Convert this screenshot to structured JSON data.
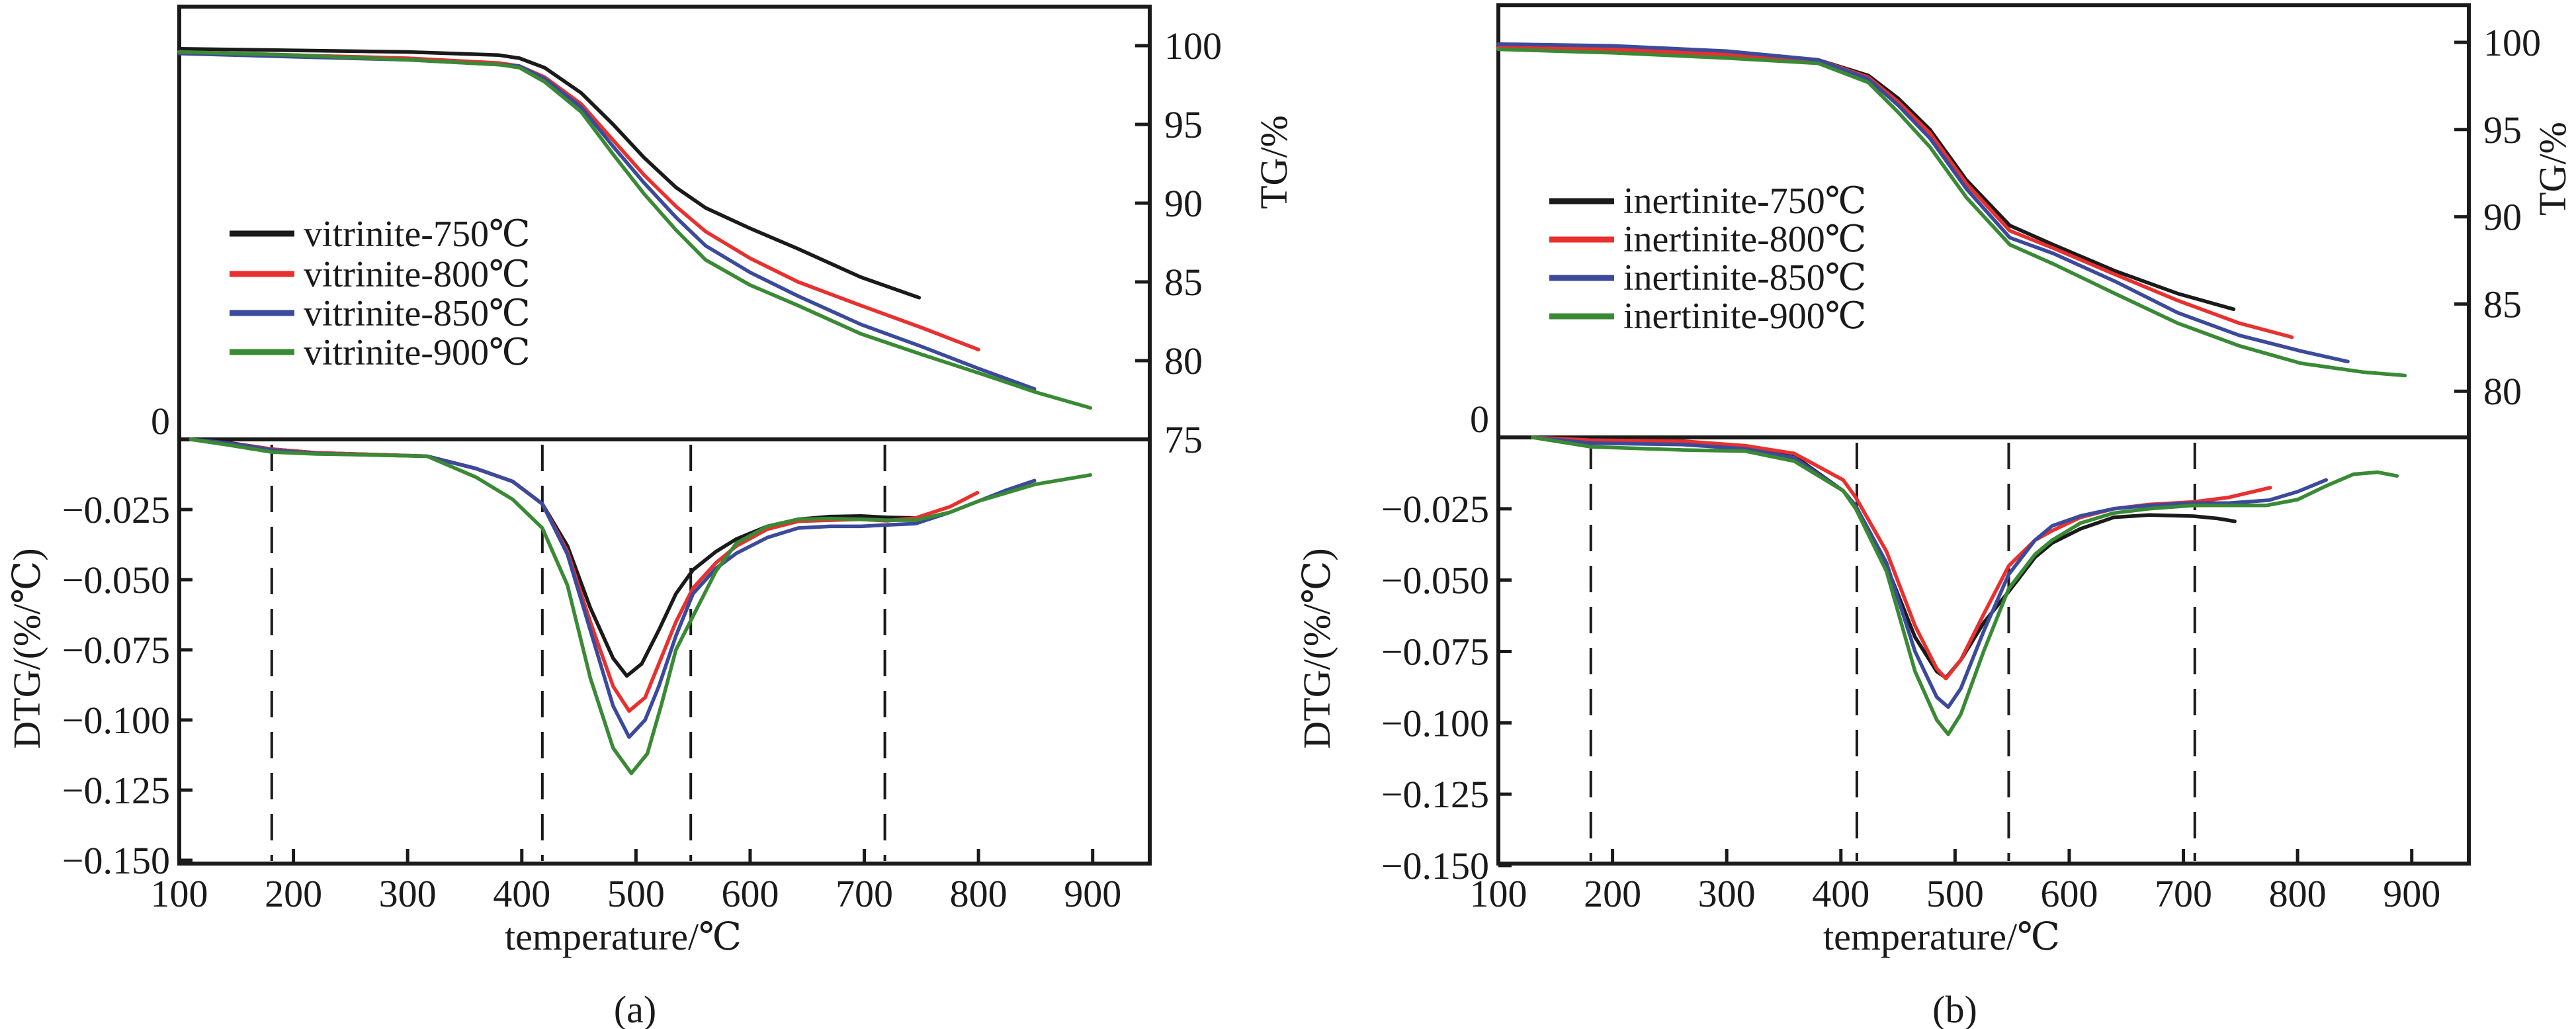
{
  "colors": {
    "750": "#1a1a1a",
    "800": "#e8312f",
    "850": "#3b4a9b",
    "900": "#3a8a35"
  },
  "chart_data": [
    {
      "id": "a",
      "type": "line",
      "panel_label": "(a)",
      "xlabel": "temperature/℃",
      "xlim": [
        100,
        950
      ],
      "xticks": [
        100,
        200,
        300,
        400,
        500,
        600,
        700,
        800,
        900
      ],
      "xtick_labels": [
        "100",
        "200",
        "300",
        "400",
        "500",
        "600",
        "700",
        "800",
        "900"
      ],
      "vertical_dashed_lines_x": [
        181,
        418,
        548,
        718
      ],
      "tg": {
        "ylabel": "TG/%",
        "axis_side": "right",
        "ylim": [
          75,
          102.7
        ],
        "yticks": [
          100,
          95,
          90,
          85,
          80,
          75
        ],
        "ytick_labels": [
          "100",
          "95",
          "90",
          "85",
          "80",
          "75"
        ],
        "legend_position": "center-left",
        "series": [
          {
            "name": "vitrinite-750℃",
            "key": "750",
            "x": [
              100,
              200,
              300,
              380,
              398,
              420,
              452,
              480,
              507,
              535,
              561,
              600,
              642,
              697,
              748
            ],
            "y": [
              99.8,
              99.7,
              99.6,
              99.4,
              99.2,
              98.6,
              97.0,
              95.0,
              92.9,
              91.0,
              89.7,
              88.4,
              87.1,
              85.3,
              84.0
            ]
          },
          {
            "name": "vitrinite-800℃",
            "key": "800",
            "x": [
              100,
              200,
              300,
              380,
              398,
              420,
              452,
              480,
              507,
              535,
              561,
              600,
              642,
              697,
              750,
              800
            ],
            "y": [
              99.6,
              99.4,
              99.2,
              98.9,
              98.7,
              98.0,
              96.3,
              94.0,
              91.8,
              89.8,
              88.2,
              86.5,
              85.0,
              83.5,
              82.1,
              80.7
            ]
          },
          {
            "name": "vitrinite-850℃",
            "key": "850",
            "x": [
              100,
              200,
              300,
              380,
              398,
              420,
              452,
              480,
              507,
              535,
              561,
              600,
              642,
              697,
              750,
              800,
              849
            ],
            "y": [
              99.5,
              99.3,
              99.1,
              98.8,
              98.7,
              97.9,
              96.1,
              93.6,
              91.3,
              89.1,
              87.3,
              85.6,
              84.1,
              82.3,
              80.9,
              79.5,
              78.2
            ]
          },
          {
            "name": "vitrinite-900℃",
            "key": "900",
            "x": [
              100,
              200,
              300,
              380,
              398,
              420,
              452,
              480,
              507,
              535,
              561,
              600,
              642,
              697,
              750,
              805,
              850,
              898
            ],
            "y": [
              99.6,
              99.4,
              99.1,
              98.8,
              98.6,
              97.7,
              95.8,
              93.1,
              90.6,
              88.3,
              86.4,
              84.8,
              83.5,
              81.7,
              80.4,
              79.1,
              78.0,
              77.0
            ]
          }
        ]
      },
      "dtg": {
        "ylabel": "DTG/(%/℃)",
        "axis_side": "left",
        "ylim": [
          -0.151,
          0
        ],
        "yticks": [
          0,
          -0.025,
          -0.05,
          -0.075,
          -0.1,
          -0.125,
          -0.15
        ],
        "ytick_labels": [
          "0",
          "−0.025",
          "−0.050",
          "−0.075",
          "−0.100",
          "−0.125",
          "−0.150"
        ],
        "series": [
          {
            "name": "vitrinite-750℃",
            "key": "750",
            "x": [
              110,
              140,
              181,
              220,
              262,
              317,
              360,
              392,
              418,
              440,
              460,
              480,
              492,
              505,
              520,
              535,
              550,
              570,
              588,
              615,
              642,
              670,
              697,
              720,
              745
            ],
            "y": [
              0,
              -0.001,
              -0.0035,
              -0.0048,
              -0.0053,
              -0.006,
              -0.0104,
              -0.015,
              -0.023,
              -0.038,
              -0.06,
              -0.078,
              -0.0843,
              -0.08,
              -0.068,
              -0.055,
              -0.0465,
              -0.04,
              -0.0355,
              -0.031,
              -0.0285,
              -0.0275,
              -0.0273,
              -0.0278,
              -0.028
            ]
          },
          {
            "name": "vitrinite-800℃",
            "key": "800",
            "x": [
              110,
              140,
              181,
              220,
              262,
              317,
              360,
              392,
              418,
              440,
              460,
              480,
              494,
              508,
              520,
              535,
              550,
              570,
              588,
              615,
              642,
              670,
              697,
              720,
              745,
              775,
              799
            ],
            "y": [
              0,
              -0.0012,
              -0.0035,
              -0.0048,
              -0.0053,
              -0.006,
              -0.0104,
              -0.015,
              -0.023,
              -0.04,
              -0.065,
              -0.088,
              -0.0968,
              -0.092,
              -0.08,
              -0.065,
              -0.053,
              -0.044,
              -0.038,
              -0.032,
              -0.0292,
              -0.0288,
              -0.0285,
              -0.029,
              -0.028,
              -0.024,
              -0.019
            ]
          },
          {
            "name": "vitrinite-850℃",
            "key": "850",
            "x": [
              110,
              140,
              181,
              220,
              262,
              317,
              360,
              392,
              418,
              440,
              460,
              480,
              494,
              508,
              520,
              535,
              550,
              570,
              588,
              615,
              642,
              670,
              697,
              720,
              745,
              775,
              800,
              825,
              849
            ],
            "y": [
              0,
              -0.0012,
              -0.0038,
              -0.005,
              -0.0055,
              -0.006,
              -0.0104,
              -0.015,
              -0.023,
              -0.041,
              -0.068,
              -0.095,
              -0.1061,
              -0.1,
              -0.088,
              -0.07,
              -0.055,
              -0.046,
              -0.0406,
              -0.035,
              -0.0316,
              -0.031,
              -0.031,
              -0.0305,
              -0.03,
              -0.026,
              -0.022,
              -0.018,
              -0.0147
            ]
          },
          {
            "name": "vitrinite-900℃",
            "key": "900",
            "x": [
              110,
              140,
              181,
              220,
              262,
              317,
              360,
              392,
              418,
              440,
              460,
              480,
              496,
              510,
              522,
              535,
              550,
              570,
              588,
              615,
              642,
              670,
              697,
              720,
              745,
              775,
              800,
              850,
              898
            ],
            "y": [
              0,
              -0.0018,
              -0.0045,
              -0.0052,
              -0.0055,
              -0.006,
              -0.0135,
              -0.0214,
              -0.0316,
              -0.052,
              -0.085,
              -0.11,
              -0.119,
              -0.112,
              -0.095,
              -0.075,
              -0.063,
              -0.047,
              -0.037,
              -0.031,
              -0.0285,
              -0.0282,
              -0.0285,
              -0.0288,
              -0.0288,
              -0.026,
              -0.022,
              -0.016,
              -0.0127
            ]
          }
        ]
      }
    },
    {
      "id": "b",
      "type": "line",
      "panel_label": "(b)",
      "xlabel": "temperature/℃",
      "xlim": [
        100,
        950
      ],
      "xticks": [
        100,
        200,
        300,
        400,
        500,
        600,
        700,
        800,
        900
      ],
      "xtick_labels": [
        "100",
        "200",
        "300",
        "400",
        "500",
        "600",
        "700",
        "800",
        "900"
      ],
      "vertical_dashed_lines_x": [
        181,
        414,
        547,
        710
      ],
      "tg": {
        "ylabel": "TG/%",
        "axis_side": "right",
        "ylim": [
          77.5,
          102.4
        ],
        "yticks": [
          100,
          95,
          90,
          85,
          80
        ],
        "ytick_labels": [
          "100",
          "95",
          "90",
          "85",
          "80"
        ],
        "legend_position": "center-left",
        "series": [
          {
            "name": "inertinite-750℃",
            "key": "750",
            "x": [
              100,
              200,
              300,
              380,
              424,
              450,
              478,
              510,
              548,
              586,
              640,
              695,
              744
            ],
            "y": [
              99.8,
              99.6,
              99.3,
              99.0,
              98.1,
              96.8,
              95.0,
              92.1,
              89.5,
              88.4,
              86.9,
              85.6,
              84.7
            ]
          },
          {
            "name": "inertinite-800℃",
            "key": "800",
            "x": [
              100,
              200,
              300,
              380,
              424,
              450,
              478,
              510,
              548,
              586,
              640,
              695,
              749,
              795
            ],
            "y": [
              99.7,
              99.6,
              99.3,
              99.0,
              98.0,
              96.6,
              94.8,
              91.9,
              89.2,
              88.2,
              86.7,
              85.2,
              83.9,
              83.1
            ]
          },
          {
            "name": "inertinite-850℃",
            "key": "850",
            "x": [
              100,
              200,
              300,
              380,
              424,
              450,
              478,
              510,
              548,
              586,
              640,
              695,
              749,
              803,
              844
            ],
            "y": [
              99.9,
              99.8,
              99.5,
              99.0,
              97.9,
              96.4,
              94.5,
              91.6,
              88.8,
              87.9,
              86.3,
              84.5,
              83.2,
              82.3,
              81.7
            ]
          },
          {
            "name": "inertinite-900℃",
            "key": "900",
            "x": [
              100,
              200,
              300,
              380,
              424,
              450,
              478,
              510,
              548,
              586,
              640,
              695,
              749,
              803,
              857,
              894
            ],
            "y": [
              99.6,
              99.4,
              99.1,
              98.8,
              97.7,
              96.0,
              94.0,
              91.1,
              88.4,
              87.3,
              85.6,
              83.9,
              82.6,
              81.6,
              81.1,
              80.9
            ]
          }
        ]
      },
      "dtg": {
        "ylabel": "DTG/(%/℃)",
        "axis_side": "left",
        "ylim": [
          -0.151,
          0
        ],
        "yticks": [
          0,
          -0.025,
          -0.05,
          -0.075,
          -0.1,
          -0.125,
          -0.15
        ],
        "ytick_labels": [
          "0",
          "−0.025",
          "−0.050",
          "−0.075",
          "−0.100",
          "−0.125",
          "−0.150"
        ],
        "series": [
          {
            "name": "inertinite-750℃",
            "key": "750",
            "x": [
              130,
              181,
              261,
              316,
              359,
              402,
              413,
              440,
              465,
              484,
              492,
              505,
              525,
              547,
              570,
              585,
              610,
              639,
              670,
              709,
              730,
              745
            ],
            "y": [
              0,
              -0.001,
              -0.0015,
              -0.0035,
              -0.0065,
              -0.0187,
              -0.024,
              -0.045,
              -0.07,
              -0.082,
              -0.0842,
              -0.078,
              -0.065,
              -0.054,
              -0.042,
              -0.037,
              -0.032,
              -0.028,
              -0.0272,
              -0.0276,
              -0.0284,
              -0.0294
            ]
          },
          {
            "name": "inertinite-800℃",
            "key": "800",
            "x": [
              130,
              181,
              261,
              316,
              359,
              402,
              413,
              440,
              465,
              484,
              492,
              505,
              525,
              547,
              570,
              585,
              610,
              639,
              670,
              709,
              740,
              776
            ],
            "y": [
              0,
              -0.001,
              -0.0013,
              -0.0029,
              -0.0056,
              -0.0149,
              -0.021,
              -0.04,
              -0.066,
              -0.081,
              -0.0845,
              -0.078,
              -0.062,
              -0.045,
              -0.036,
              -0.0327,
              -0.028,
              -0.025,
              -0.0235,
              -0.0226,
              -0.021,
              -0.0176
            ]
          },
          {
            "name": "inertinite-850℃",
            "key": "850",
            "x": [
              130,
              181,
              261,
              316,
              359,
              402,
              413,
              440,
              465,
              484,
              494,
              505,
              525,
              547,
              570,
              585,
              610,
              639,
              670,
              709,
              740,
              775,
              800,
              825
            ],
            "y": [
              0,
              -0.002,
              -0.0025,
              -0.004,
              -0.0071,
              -0.0187,
              -0.024,
              -0.044,
              -0.075,
              -0.091,
              -0.0945,
              -0.088,
              -0.068,
              -0.048,
              -0.036,
              -0.031,
              -0.0275,
              -0.025,
              -0.0238,
              -0.023,
              -0.023,
              -0.022,
              -0.019,
              -0.0149
            ]
          },
          {
            "name": "inertinite-900℃",
            "key": "900",
            "x": [
              130,
              181,
              261,
              316,
              359,
              402,
              413,
              440,
              465,
              484,
              494,
              505,
              525,
              547,
              570,
              585,
              610,
              639,
              670,
              709,
              740,
              773,
              800,
              825,
              849,
              870,
              887
            ],
            "y": [
              0,
              -0.0033,
              -0.0044,
              -0.0048,
              -0.0083,
              -0.0187,
              -0.025,
              -0.047,
              -0.082,
              -0.099,
              -0.104,
              -0.097,
              -0.075,
              -0.053,
              -0.041,
              -0.036,
              -0.03,
              -0.0265,
              -0.025,
              -0.0238,
              -0.0238,
              -0.0238,
              -0.0218,
              -0.017,
              -0.0129,
              -0.0122,
              -0.0135
            ]
          }
        ]
      }
    }
  ]
}
